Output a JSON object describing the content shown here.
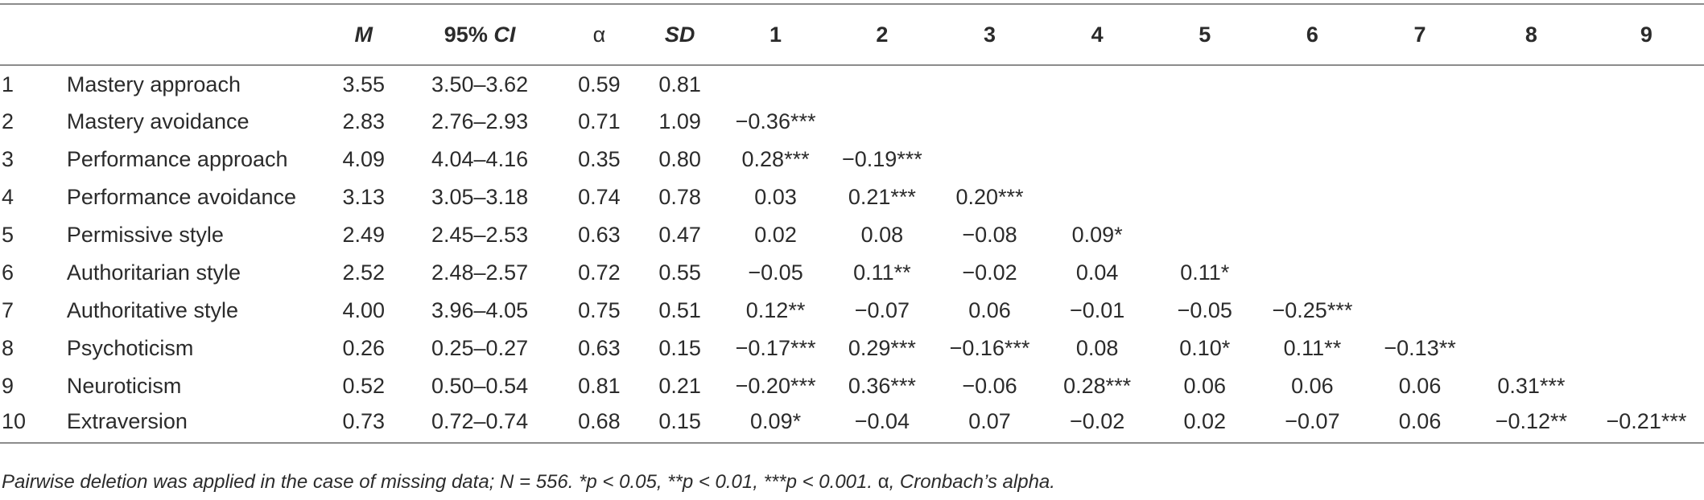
{
  "headers": {
    "m": "M",
    "ci_prefix": "95% ",
    "ci_italic": "CI",
    "alpha": "α",
    "sd": "SD",
    "cols": [
      "1",
      "2",
      "3",
      "4",
      "5",
      "6",
      "7",
      "8",
      "9"
    ]
  },
  "rows": [
    {
      "idx": "1",
      "name": "Mastery approach",
      "m": "3.55",
      "ci": "3.50–3.62",
      "alpha": "0.59",
      "sd": "0.81",
      "corr": [
        "",
        "",
        "",
        "",
        "",
        "",
        "",
        "",
        ""
      ]
    },
    {
      "idx": "2",
      "name": "Mastery avoidance",
      "m": "2.83",
      "ci": "2.76–2.93",
      "alpha": "0.71",
      "sd": "1.09",
      "corr": [
        "−0.36***",
        "",
        "",
        "",
        "",
        "",
        "",
        "",
        ""
      ]
    },
    {
      "idx": "3",
      "name": "Performance approach",
      "m": "4.09",
      "ci": "4.04–4.16",
      "alpha": "0.35",
      "sd": "0.80",
      "corr": [
        "0.28***",
        "−0.19***",
        "",
        "",
        "",
        "",
        "",
        "",
        ""
      ]
    },
    {
      "idx": "4",
      "name": "Performance avoidance",
      "m": "3.13",
      "ci": "3.05–3.18",
      "alpha": "0.74",
      "sd": "0.78",
      "corr": [
        "0.03",
        "0.21***",
        "0.20***",
        "",
        "",
        "",
        "",
        "",
        ""
      ]
    },
    {
      "idx": "5",
      "name": "Permissive style",
      "m": "2.49",
      "ci": "2.45–2.53",
      "alpha": "0.63",
      "sd": "0.47",
      "corr": [
        "0.02",
        "0.08",
        "−0.08",
        "0.09*",
        "",
        "",
        "",
        "",
        ""
      ]
    },
    {
      "idx": "6",
      "name": "Authoritarian style",
      "m": "2.52",
      "ci": "2.48–2.57",
      "alpha": "0.72",
      "sd": "0.55",
      "corr": [
        "−0.05",
        "0.11**",
        "−0.02",
        "0.04",
        "0.11*",
        "",
        "",
        "",
        ""
      ]
    },
    {
      "idx": "7",
      "name": "Authoritative style",
      "m": "4.00",
      "ci": "3.96–4.05",
      "alpha": "0.75",
      "sd": "0.51",
      "corr": [
        "0.12**",
        "−0.07",
        "0.06",
        "−0.01",
        "−0.05",
        "−0.25***",
        "",
        "",
        ""
      ]
    },
    {
      "idx": "8",
      "name": "Psychoticism",
      "m": "0.26",
      "ci": "0.25–0.27",
      "alpha": "0.63",
      "sd": "0.15",
      "corr": [
        "−0.17***",
        "0.29***",
        "−0.16***",
        "0.08",
        "0.10*",
        "0.11**",
        "−0.13**",
        "",
        ""
      ]
    },
    {
      "idx": "9",
      "name": "Neuroticism",
      "m": "0.52",
      "ci": "0.50–0.54",
      "alpha": "0.81",
      "sd": "0.21",
      "corr": [
        "−0.20***",
        "0.36***",
        "−0.06",
        "0.28***",
        "0.06",
        "0.06",
        "0.06",
        "0.31***",
        ""
      ]
    },
    {
      "idx": "10",
      "name": "Extraversion",
      "m": "0.73",
      "ci": "0.72–0.74",
      "alpha": "0.68",
      "sd": "0.15",
      "corr": [
        "0.09*",
        "−0.04",
        "0.07",
        "−0.02",
        "0.02",
        "−0.07",
        "0.06",
        "−0.12**",
        "−0.21***"
      ]
    }
  ],
  "note": {
    "before_alpha": "Pairwise deletion was applied in the case of missing data; N = 556. *p < 0.05, **p < 0.01, ***p < 0.001. ",
    "alpha_symbol": "α",
    "after_alpha": ", Cronbach’s alpha."
  }
}
